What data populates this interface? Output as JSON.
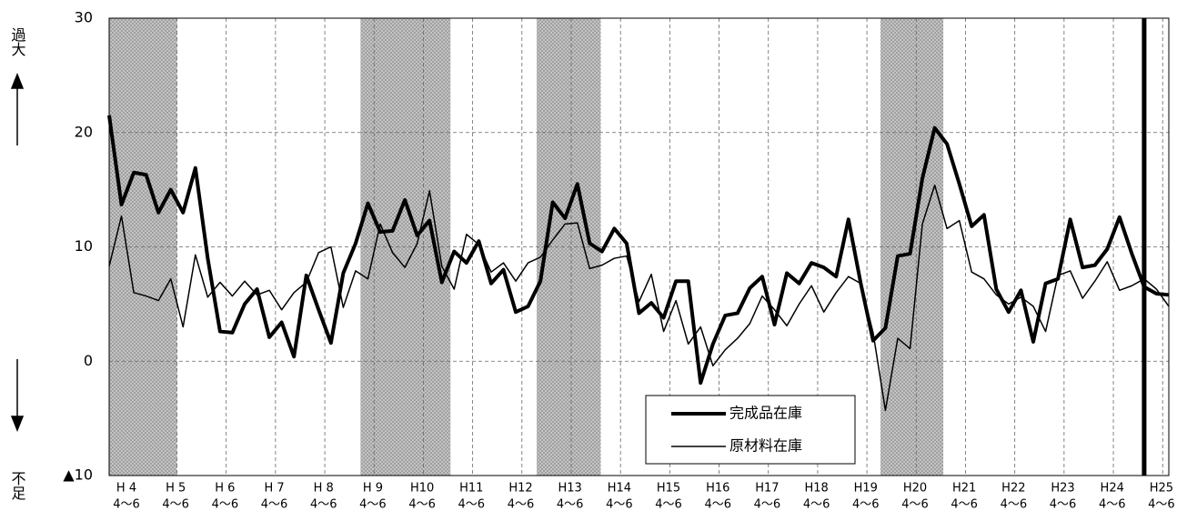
{
  "chart_data": {
    "type": "line",
    "y_top_label": "過大",
    "y_bottom_label": "不足",
    "categories": [
      "H 4",
      null,
      null,
      null,
      "H 5",
      null,
      null,
      null,
      "H 6",
      null,
      null,
      null,
      "H 7",
      null,
      null,
      null,
      "H 8",
      null,
      null,
      null,
      "H 9",
      null,
      null,
      null,
      "H10",
      null,
      null,
      null,
      "H11",
      null,
      null,
      null,
      "H12",
      null,
      null,
      null,
      "H13",
      null,
      null,
      null,
      "H14",
      null,
      null,
      null,
      "H15",
      null,
      null,
      null,
      "H16",
      null,
      null,
      null,
      "H17",
      null,
      null,
      null,
      "H18",
      null,
      null,
      null,
      "H19",
      null,
      null,
      null,
      "H20",
      null,
      null,
      null,
      "H21",
      null,
      null,
      null,
      "H22",
      null,
      null,
      null,
      "H23",
      null,
      null,
      null,
      "H24",
      null,
      null,
      null,
      "H25",
      null,
      null
    ],
    "category_sublabels": [
      "4～6",
      null,
      null,
      null,
      "4～6",
      null,
      null,
      null,
      "4～6",
      null,
      null,
      null,
      "4～6",
      null,
      null,
      null,
      "4～6",
      null,
      null,
      null,
      "4～6",
      null,
      null,
      null,
      "4～6",
      null,
      null,
      null,
      "4～6",
      null,
      null,
      null,
      "4～6",
      null,
      null,
      null,
      "4～6",
      null,
      null,
      null,
      "4～6",
      null,
      null,
      null,
      "4～6",
      null,
      null,
      null,
      "4～6",
      null,
      null,
      null,
      "4～6",
      null,
      null,
      null,
      "4～6",
      null,
      null,
      null,
      "4～6",
      null,
      null,
      null,
      "4～6",
      null,
      null,
      null,
      "4～6",
      null,
      null,
      null,
      "4～6",
      null,
      null,
      null,
      "4～6",
      null,
      null,
      null,
      "4～6",
      null,
      null,
      null,
      "4～6",
      null,
      null
    ],
    "series": [
      {
        "name": "完成品在庫",
        "color": "#000000",
        "line_width": 4,
        "values": [
          21.5,
          13.7,
          16.5,
          16.3,
          13,
          15,
          13,
          16.9,
          9,
          2.6,
          2.5,
          5,
          6.3,
          2.1,
          3.4,
          0.4,
          7.5,
          4.5,
          1.6,
          7.7,
          10.3,
          13.8,
          11.3,
          11.4,
          14.1,
          11,
          12.3,
          6.9,
          9.6,
          8.6,
          10.5,
          6.8,
          8,
          4.3,
          4.8,
          7,
          13.9,
          12.5,
          15.5,
          10.3,
          9.6,
          11.6,
          10.3,
          4.2,
          5.1,
          3.8,
          7,
          7,
          -1.9,
          1.5,
          4,
          4.2,
          6.4,
          7.4,
          3.2,
          7.7,
          6.8,
          8.6,
          8.2,
          7.4,
          12.4,
          6.8,
          1.8,
          2.9,
          9.2,
          9.4,
          16,
          20.4,
          19,
          15.5,
          11.8,
          12.8,
          6.3,
          4.3,
          6.2,
          1.7,
          6.8,
          7.2,
          12.4,
          8.2,
          8.4,
          9.8,
          12.6,
          9.4,
          6.5,
          5.9,
          5.8
        ]
      },
      {
        "name": "原材料在庫",
        "color": "#000000",
        "line_width": 1.5,
        "values": [
          8.3,
          12.7,
          6,
          5.7,
          5.3,
          7.2,
          3,
          9.3,
          5.6,
          6.9,
          5.7,
          7,
          5.8,
          6.2,
          4.5,
          6,
          6.9,
          9.5,
          10,
          4.7,
          7.9,
          7.2,
          12,
          9.5,
          8.2,
          10.3,
          14.9,
          8.3,
          6.3,
          11.1,
          10.2,
          7.8,
          8.6,
          7,
          8.6,
          9.1,
          10.6,
          12,
          12.1,
          8.1,
          8.4,
          9,
          9.2,
          5.2,
          7.6,
          2.6,
          5.3,
          1.5,
          3,
          -0.4,
          1,
          2,
          3.3,
          5.7,
          4.5,
          3.1,
          5,
          6.6,
          4.3,
          6,
          7.4,
          6.8,
          2.5,
          -4.3,
          2,
          1.1,
          12,
          15.4,
          11.6,
          12.3,
          7.8,
          7.2,
          5.8,
          5,
          5.6,
          4.8,
          2.6,
          7.5,
          7.9,
          5.5,
          7,
          8.7,
          6.2,
          6.6,
          7.2,
          6.3,
          4.8
        ]
      }
    ],
    "ylim": [
      -10,
      30
    ],
    "yticks": [
      {
        "value": -10,
        "label": "▲10"
      },
      0,
      10,
      20,
      30
    ],
    "grid": true,
    "shaded_periods": [
      [
        0,
        5.5
      ],
      [
        20.4,
        27.7
      ],
      [
        34.7,
        39.9
      ],
      [
        62.6,
        67.7
      ]
    ],
    "highlight_index": 84,
    "legend": "lower-center"
  }
}
